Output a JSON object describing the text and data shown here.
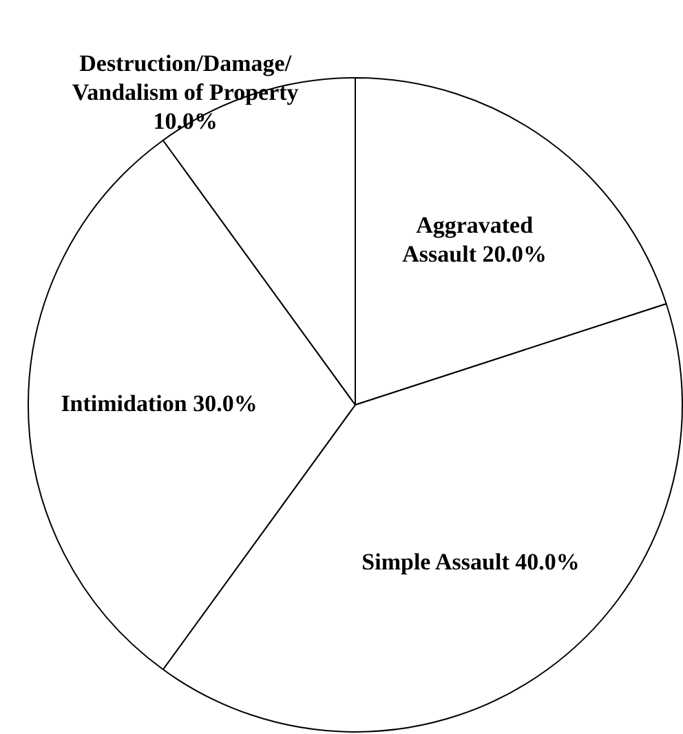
{
  "chart_data": {
    "type": "pie",
    "categories": [
      "Aggravated Assault",
      "Simple Assault",
      "Intimidation",
      "Destruction/Damage/Vandalism of Property"
    ],
    "values": [
      20,
      40,
      30,
      10
    ],
    "colors": [
      "#ffffff",
      "#ffffff",
      "#ffffff",
      "#ffffff"
    ],
    "value_labels": [
      "20.0%",
      "40.0%",
      "30.0%",
      "10.0%"
    ],
    "legend": false
  }
}
